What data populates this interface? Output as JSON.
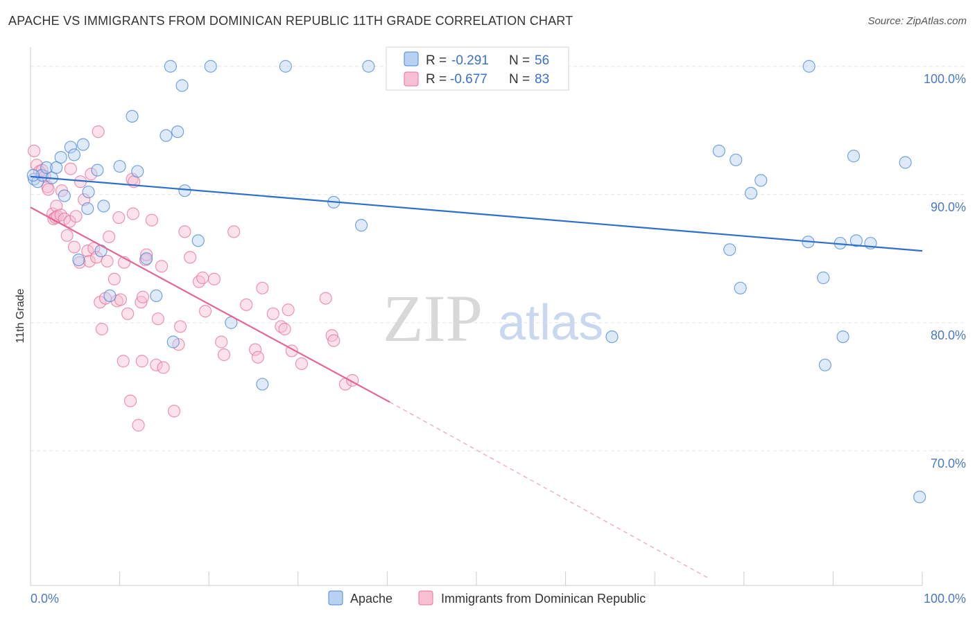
{
  "title": "APACHE VS IMMIGRANTS FROM DOMINICAN REPUBLIC 11TH GRADE CORRELATION CHART",
  "source": "Source: ZipAtlas.com",
  "watermark": {
    "zip": "ZIP",
    "atlas": "atlas"
  },
  "colors": {
    "apache": "#4a86d8",
    "apache_fill": "#b8d0f2",
    "dominican": "#e8729c",
    "dominican_fill": "#f7bfd2",
    "grid": "#e3e3e3",
    "tick_label": "#4a78c2"
  },
  "legend": {
    "r_label": "R =",
    "n_label": "N =",
    "apache": {
      "r": "-0.291",
      "n": "56"
    },
    "dominican": {
      "r": "-0.677",
      "n": "83"
    }
  },
  "bottom_legend": {
    "apache": "Apache",
    "dominican": "Immigrants from Dominican Republic"
  },
  "chart_data": {
    "type": "scatter",
    "title": "APACHE VS IMMIGRANTS FROM DOMINICAN REPUBLIC 11TH GRADE CORRELATION CHART",
    "xlabel": "",
    "ylabel": "11th Grade",
    "xlim": [
      0,
      100
    ],
    "ylim": [
      59.5,
      101.5
    ],
    "x_tick_labels": [
      "0.0%",
      "100.0%"
    ],
    "y_ticks": [
      70,
      80,
      90,
      100
    ],
    "y_tick_labels": [
      "70.0%",
      "80.0%",
      "90.0%",
      "100.0%"
    ],
    "grid": true,
    "legend_placement": "top-center",
    "series": [
      {
        "name": "Apache",
        "color": "#4a86d8",
        "trend": {
          "x0": 0,
          "y0": 91.4,
          "x1": 100,
          "y1": 85.6
        },
        "points": [
          [
            0.4,
            91.2
          ],
          [
            0.8,
            91.0
          ],
          [
            1.3,
            91.5
          ],
          [
            1.8,
            92.1
          ],
          [
            2.4,
            91.3
          ],
          [
            2.9,
            92.1
          ],
          [
            3.4,
            92.9
          ],
          [
            3.8,
            89.9
          ],
          [
            4.5,
            93.7
          ],
          [
            4.9,
            93.1
          ],
          [
            5.4,
            84.9
          ],
          [
            5.9,
            93.9
          ],
          [
            6.4,
            88.9
          ],
          [
            6.5,
            90.2
          ],
          [
            7.5,
            91.9
          ],
          [
            7.9,
            85.6
          ],
          [
            8.2,
            89.1
          ],
          [
            8.9,
            82.1
          ],
          [
            10.0,
            92.2
          ],
          [
            11.4,
            96.1
          ],
          [
            12.0,
            91.8
          ],
          [
            13.0,
            85.0
          ],
          [
            14.1,
            82.1
          ],
          [
            15.2,
            94.6
          ],
          [
            15.7,
            100.0
          ],
          [
            16.0,
            78.5
          ],
          [
            16.5,
            94.9
          ],
          [
            17.0,
            98.5
          ],
          [
            17.3,
            90.3
          ],
          [
            18.8,
            86.4
          ],
          [
            20.2,
            100.0
          ],
          [
            22.5,
            80.0
          ],
          [
            26.0,
            75.2
          ],
          [
            28.6,
            100.0
          ],
          [
            34.0,
            89.4
          ],
          [
            37.1,
            87.6
          ],
          [
            37.9,
            100.0
          ],
          [
            65.2,
            78.9
          ],
          [
            77.2,
            93.4
          ],
          [
            78.4,
            85.7
          ],
          [
            79.1,
            92.7
          ],
          [
            79.6,
            82.7
          ],
          [
            80.8,
            90.1
          ],
          [
            81.9,
            91.1
          ],
          [
            87.3,
            100.0
          ],
          [
            87.2,
            86.3
          ],
          [
            88.9,
            83.5
          ],
          [
            89.1,
            76.7
          ],
          [
            90.8,
            86.2
          ],
          [
            91.1,
            78.9
          ],
          [
            92.3,
            93.0
          ],
          [
            92.6,
            86.4
          ],
          [
            94.2,
            86.2
          ],
          [
            98.1,
            92.5
          ],
          [
            99.7,
            66.4
          ],
          [
            0.3,
            91.5
          ]
        ]
      },
      {
        "name": "Immigrants from Dominican Republic",
        "color": "#e8729c",
        "trend": {
          "x0": 0,
          "y0": 89.0,
          "x1": 40.3,
          "y1": 73.8
        },
        "trend_extension": {
          "x0": 40.3,
          "y0": 73.8,
          "x1": 76.2,
          "y1": 60.0
        },
        "points": [
          [
            0.4,
            93.4
          ],
          [
            0.7,
            92.3
          ],
          [
            1.0,
            91.8
          ],
          [
            1.3,
            91.9
          ],
          [
            1.6,
            91.4
          ],
          [
            1.9,
            90.6
          ],
          [
            2.0,
            90.4
          ],
          [
            2.5,
            88.5
          ],
          [
            2.6,
            88.1
          ],
          [
            2.8,
            88.2
          ],
          [
            2.9,
            89.1
          ],
          [
            3.0,
            88.3
          ],
          [
            3.4,
            88.4
          ],
          [
            3.5,
            90.3
          ],
          [
            3.8,
            88.1
          ],
          [
            4.1,
            86.8
          ],
          [
            4.4,
            87.9
          ],
          [
            4.5,
            92.0
          ],
          [
            4.9,
            85.9
          ],
          [
            5.1,
            88.3
          ],
          [
            5.5,
            84.7
          ],
          [
            5.6,
            91.0
          ],
          [
            6.0,
            89.6
          ],
          [
            6.4,
            85.6
          ],
          [
            6.6,
            84.8
          ],
          [
            6.8,
            91.6
          ],
          [
            7.1,
            85.8
          ],
          [
            7.4,
            85.1
          ],
          [
            7.6,
            94.9
          ],
          [
            7.8,
            81.6
          ],
          [
            8.0,
            79.5
          ],
          [
            8.4,
            81.9
          ],
          [
            8.6,
            84.8
          ],
          [
            8.8,
            86.7
          ],
          [
            9.4,
            83.4
          ],
          [
            9.7,
            81.7
          ],
          [
            9.9,
            88.2
          ],
          [
            10.1,
            81.8
          ],
          [
            10.4,
            77.0
          ],
          [
            10.5,
            84.7
          ],
          [
            10.9,
            80.7
          ],
          [
            11.2,
            73.9
          ],
          [
            11.4,
            91.2
          ],
          [
            11.5,
            88.5
          ],
          [
            12.1,
            72.0
          ],
          [
            12.4,
            81.6
          ],
          [
            12.5,
            77.0
          ],
          [
            12.6,
            82.0
          ],
          [
            12.9,
            84.9
          ],
          [
            13.0,
            85.3
          ],
          [
            13.6,
            88.0
          ],
          [
            14.1,
            76.7
          ],
          [
            14.3,
            80.3
          ],
          [
            14.7,
            84.4
          ],
          [
            14.9,
            76.5
          ],
          [
            16.1,
            73.1
          ],
          [
            16.6,
            78.3
          ],
          [
            16.8,
            79.7
          ],
          [
            17.3,
            87.1
          ],
          [
            17.9,
            85.1
          ],
          [
            18.9,
            83.2
          ],
          [
            19.3,
            83.5
          ],
          [
            19.6,
            80.9
          ],
          [
            20.6,
            83.4
          ],
          [
            21.4,
            78.5
          ],
          [
            21.7,
            77.5
          ],
          [
            22.8,
            87.1
          ],
          [
            24.2,
            81.4
          ],
          [
            25.2,
            77.9
          ],
          [
            25.5,
            77.3
          ],
          [
            26.0,
            82.7
          ],
          [
            27.2,
            80.7
          ],
          [
            28.1,
            79.7
          ],
          [
            28.5,
            79.5
          ],
          [
            28.9,
            81.0
          ],
          [
            29.3,
            77.8
          ],
          [
            30.4,
            76.8
          ],
          [
            33.1,
            81.9
          ],
          [
            33.8,
            79.0
          ],
          [
            34.0,
            78.6
          ],
          [
            35.3,
            75.2
          ],
          [
            36.1,
            75.5
          ],
          [
            11.6,
            91.0
          ]
        ]
      }
    ]
  }
}
